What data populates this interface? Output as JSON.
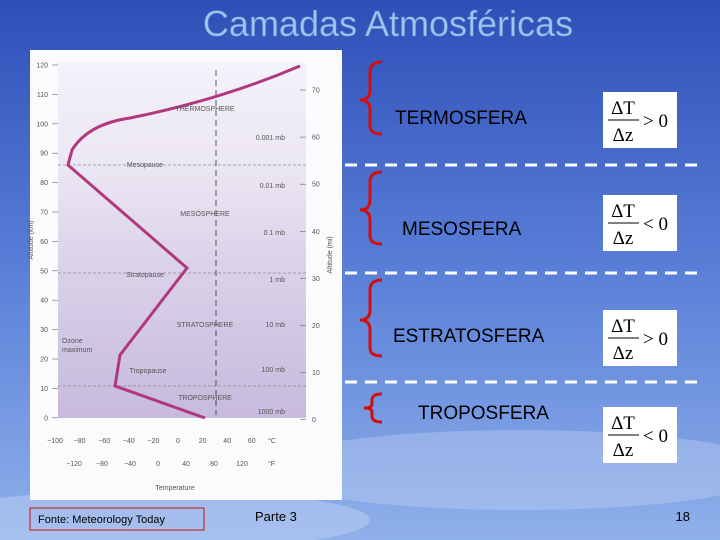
{
  "title": "Camadas Atmosféricas",
  "figure": {
    "altitude_km_label": "Altitude (km)",
    "altitude_km_ticks": [
      "120",
      "110",
      "100",
      "90",
      "80",
      "70",
      "60",
      "50",
      "40",
      "30",
      "20",
      "10",
      "0"
    ],
    "altitude_mi_label": "Altitude (mi)",
    "altitude_mi_ticks": [
      "70",
      "60",
      "50",
      "40",
      "30",
      "20",
      "10",
      "0"
    ],
    "celsius_ticks": [
      "−100",
      "−80",
      "−60",
      "−40",
      "−20",
      "0",
      "20",
      "40",
      "60"
    ],
    "celsius_unit": "°C",
    "fahrenheit_ticks": [
      "−120",
      "−80",
      "−40",
      "0",
      "40",
      "80",
      "120"
    ],
    "fahrenheit_unit": "°F",
    "x_label": "Temperature",
    "annotations": [
      "THERMOSPHERE",
      "0.001 mb",
      "Mesopause",
      "0.01 mb",
      "MESOSPHERE",
      "0.1 mb",
      "Stratopause",
      "1 mb",
      "STRATOSPHERE",
      "10 mb",
      "Ozone",
      "maximum",
      "Tropopause",
      "100 mb",
      "TROPOSPHERE",
      "1000 mb"
    ]
  },
  "layers": [
    {
      "name": "TERMOSFERA",
      "numerator": "ΔT",
      "denominator": "Δz",
      "relation": "> 0"
    },
    {
      "name": "MESOSFERA",
      "numerator": "ΔT",
      "denominator": "Δz",
      "relation": "< 0"
    },
    {
      "name": "ESTRATOSFERA",
      "numerator": "ΔT",
      "denominator": "Δz",
      "relation": "> 0"
    },
    {
      "name": "TROPOSFERA",
      "numerator": "ΔT",
      "denominator": "Δz",
      "relation": "< 0"
    }
  ],
  "footer": {
    "source": "Fonte: Meteorology Today",
    "section": "Parte 3",
    "page": "18"
  }
}
